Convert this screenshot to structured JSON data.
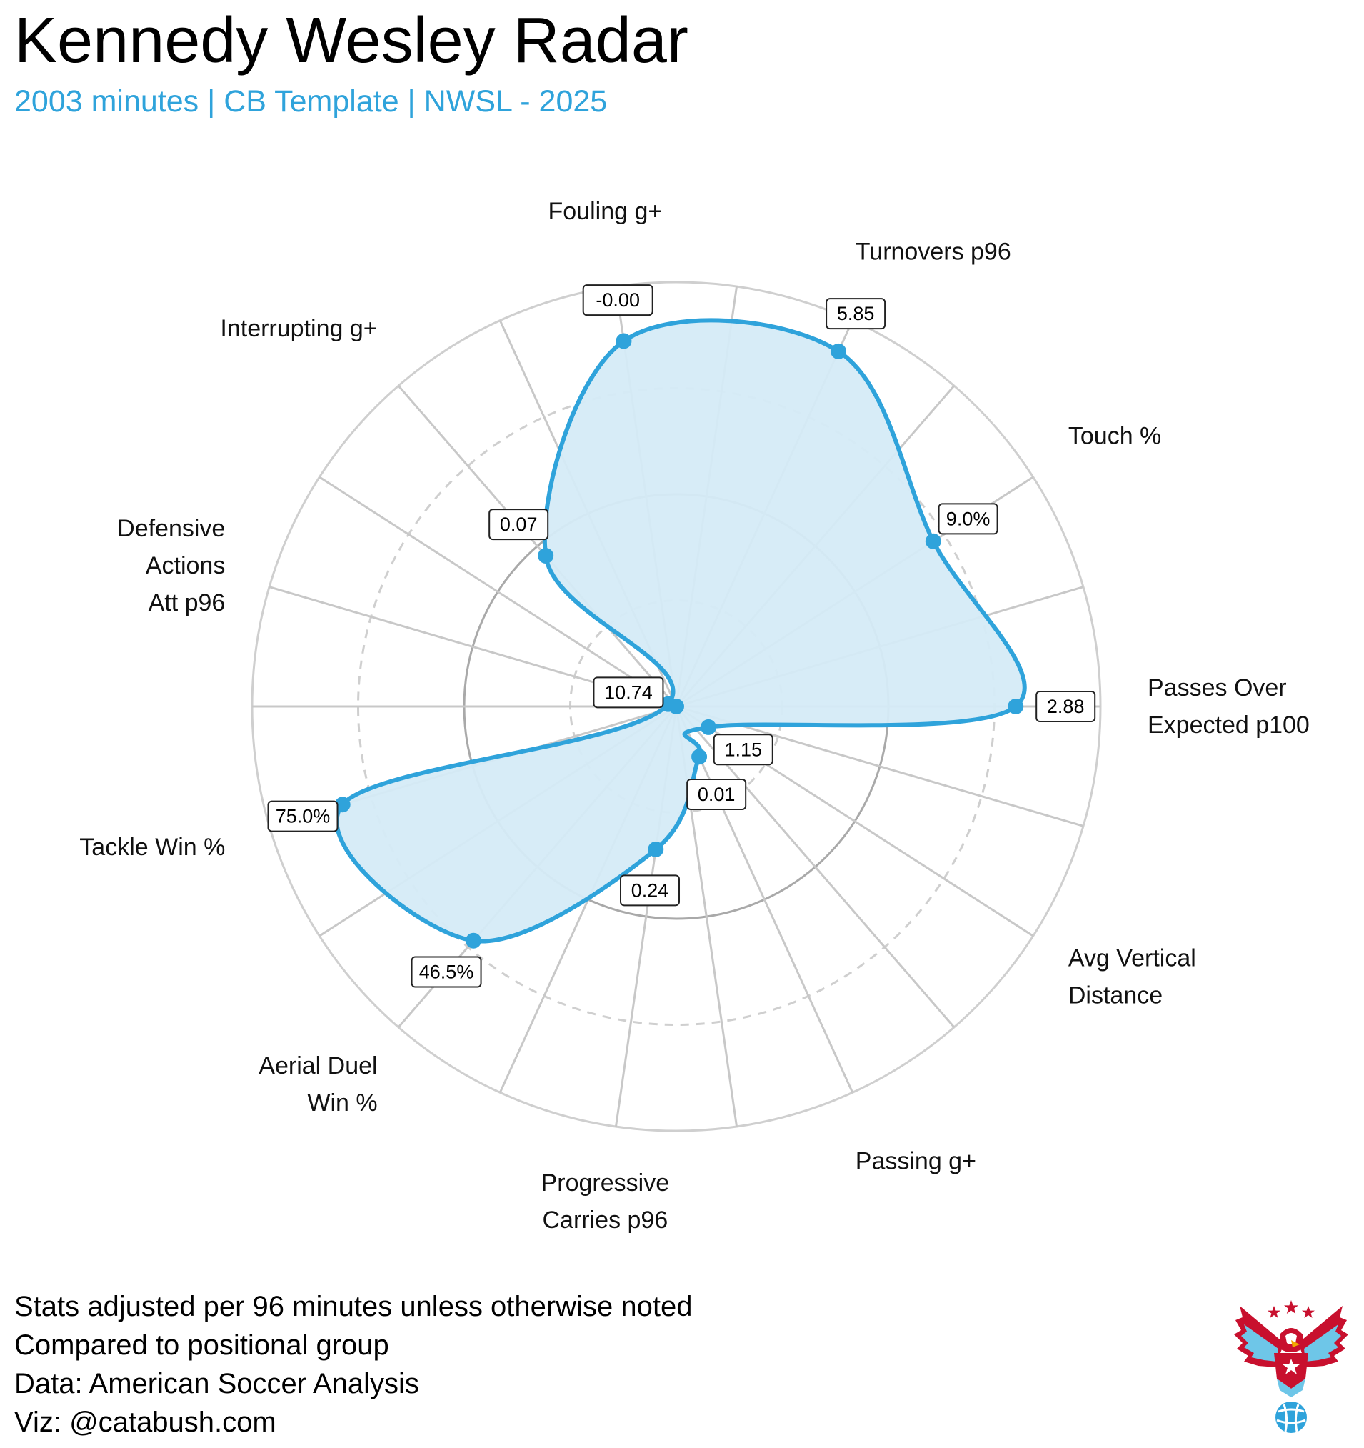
{
  "title": "Kennedy Wesley Radar",
  "subtitle": "2003 minutes | CB Template | NWSL - 2025",
  "colors": {
    "accent": "#2fa3db",
    "fill": "#d5ebf7",
    "grid_outer": "#cfcfcf",
    "grid_mid": "#a9a9a9",
    "spokes": "#c8c8c8"
  },
  "chart_data": {
    "type": "radar",
    "radial_range": [
      0,
      100
    ],
    "rings": [
      {
        "value": 25,
        "style": "dashed"
      },
      {
        "value": 50,
        "style": "solid"
      },
      {
        "value": 75,
        "style": "dashed"
      },
      {
        "value": 100,
        "style": "solid"
      }
    ],
    "axes": [
      {
        "label": [
          "Passes Over",
          "Expected p100"
        ],
        "value_label": "2.88",
        "percentile": 80
      },
      {
        "label": [
          "Touch %"
        ],
        "value_label": "9.0%",
        "percentile": 72
      },
      {
        "label": [
          "Turnovers p96"
        ],
        "value_label": "5.85",
        "percentile": 92
      },
      {
        "label": [
          "Fouling g+"
        ],
        "value_label": "-0.00",
        "percentile": 87
      },
      {
        "label": [
          "Interrupting g+"
        ],
        "value_label": "0.07",
        "percentile": 47
      },
      {
        "label": [
          "Defensive",
          "Actions",
          "Att p96"
        ],
        "value_label": "10.74",
        "percentile": 2
      },
      {
        "label": [
          "Tackle Win %"
        ],
        "value_label": "75.0%",
        "percentile": 82
      },
      {
        "label": [
          "Aerial Duel",
          "Win %"
        ],
        "value_label": "46.5%",
        "percentile": 73
      },
      {
        "label": [
          "Progressive",
          "Carries p96"
        ],
        "value_label": "0.24",
        "percentile": 34
      },
      {
        "label": [
          "Passing g+"
        ],
        "value_label": "0.01",
        "percentile": 13
      },
      {
        "label": [
          "Avg Vertical",
          "Distance"
        ],
        "value_label": "1.15",
        "percentile": 9
      }
    ]
  },
  "footer": {
    "lines": [
      "Stats adjusted per 96 minutes unless otherwise noted",
      "Compared to positional group",
      "Data: American Soccer Analysis",
      "Viz: @catabush.com"
    ]
  },
  "logo": {
    "icon": "eagle-soccer-ball-logo",
    "colors": {
      "red": "#c8102e",
      "blue": "#6ec6e8"
    }
  }
}
